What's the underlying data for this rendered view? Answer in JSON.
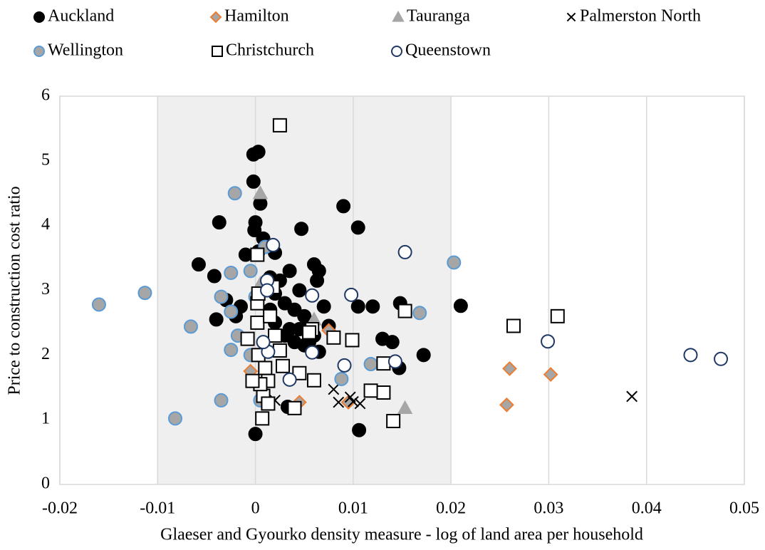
{
  "chart_data": {
    "type": "scatter",
    "x_label": "Glaeser and Gyourko density measure - log of land area per household",
    "y_label": "Price to construction cost ratio",
    "xlim": [
      -0.02,
      0.05
    ],
    "xticks": [
      -0.02,
      -0.01,
      0,
      0.01,
      0.02,
      0.03,
      0.04,
      0.05
    ],
    "ylim": [
      0,
      6
    ],
    "yticks": [
      0,
      1,
      2,
      3,
      4,
      5,
      6
    ],
    "grid": "x",
    "highlight_xrange": [
      -0.01,
      0.02
    ],
    "highlight_color": "#efefef",
    "legend": "top",
    "series": [
      {
        "name": "Auckland",
        "marker": "circle",
        "color": "#000000",
        "edge": "#000000",
        "x": [
          0.021,
          -0.0002,
          0.0003,
          -0.0002,
          0.0005,
          0.009,
          -0.0037,
          0.0105,
          0.0047,
          0,
          -0.0001,
          0.0008,
          0.0003,
          -0.001,
          0.002,
          -0.0058,
          -0.0042,
          0.006,
          0.0065,
          0.0035,
          0.0015,
          0.0025,
          0.0063,
          0.0045,
          0.002,
          -0.004,
          -0.003,
          -0.0015,
          0.003,
          0.004,
          0.005,
          0.0055,
          0.007,
          0.0075,
          0.0105,
          0.012,
          0.0148,
          0.013,
          0.014,
          0.0172,
          0.0147,
          0.0065,
          0.005,
          0.003,
          0.0035,
          0.0045,
          0.004,
          0.0055,
          0.0033,
          0.0106,
          0,
          -0.002,
          0.002,
          0.0015,
          0.006
        ],
        "values": [
          2.76,
          5.1,
          5.14,
          4.68,
          4.34,
          4.3,
          4.05,
          3.97,
          3.95,
          4.05,
          3.93,
          3.8,
          3.6,
          3.55,
          3.58,
          3.4,
          3.22,
          3.4,
          3.3,
          3.3,
          3.2,
          3.15,
          3.15,
          3.0,
          2.95,
          2.55,
          2.85,
          2.75,
          2.8,
          2.7,
          2.6,
          2.5,
          2.75,
          2.45,
          2.75,
          2.75,
          2.8,
          2.25,
          2.2,
          2.0,
          1.8,
          2.05,
          2.15,
          2.3,
          2.4,
          2.4,
          2.2,
          2.2,
          1.2,
          0.84,
          0.78,
          2.6,
          2.5,
          2.7,
          2.3
        ]
      },
      {
        "name": "Hamilton",
        "marker": "diamond",
        "color": "#a6a6a6",
        "edge": "#ed7d31",
        "x": [
          0.026,
          0.0302,
          0.0257,
          0.0045,
          0.0095,
          -0.0005,
          0.0075
        ],
        "values": [
          1.79,
          1.7,
          1.23,
          1.27,
          1.27,
          1.75,
          2.38
        ]
      },
      {
        "name": "Tauranga",
        "marker": "triangle",
        "color": "#a6a6a6",
        "edge": "#a6a6a6",
        "x": [
          0.0005,
          0.0153,
          0.006,
          0.0005
        ],
        "values": [
          4.5,
          1.18,
          2.55,
          3.1
        ]
      },
      {
        "name": "Palmerston North",
        "marker": "x",
        "color": "#000000",
        "edge": "#000000",
        "x": [
          0.0385,
          0.008,
          0.0085,
          0.0097,
          0.01,
          0.0107,
          0.002
        ],
        "values": [
          1.36,
          1.47,
          1.27,
          1.35,
          1.28,
          1.25,
          1.3
        ]
      },
      {
        "name": "Wellington",
        "marker": "circle",
        "color": "#a6a6a6",
        "edge": "#5b9bd5",
        "x": [
          -0.016,
          -0.0113,
          -0.0082,
          -0.0066,
          -0.0035,
          -0.0021,
          -0.0025,
          -0.0035,
          -0.0025,
          -0.0025,
          -0.0018,
          -0.0005,
          0.0203,
          0.0168,
          0.0088,
          0.0118,
          0.001,
          0.0005,
          -0.0005,
          0
        ],
        "values": [
          2.78,
          2.96,
          1.02,
          2.44,
          1.3,
          4.5,
          3.27,
          2.9,
          2.67,
          2.08,
          2.3,
          3.3,
          3.43,
          2.65,
          1.63,
          1.86,
          3.67,
          1.3,
          2.0,
          2.9
        ]
      },
      {
        "name": "Christchurch",
        "marker": "square",
        "color": "#ffffff",
        "edge": "#000000",
        "x": [
          0.0025,
          0.0264,
          0.0309,
          0.0153,
          0.0141,
          0.0131,
          0.0131,
          0.0118,
          0.0099,
          0.008,
          0.006,
          0.004,
          0.0045,
          0.0058,
          0.0007,
          0.0008,
          0.0013,
          0.0013,
          0.0003,
          0.0002,
          0.0002,
          0.0003,
          0.0002,
          0.0015,
          0.002,
          0.0025,
          0.0028,
          0.001,
          0.0005,
          -0.0003,
          0.0018,
          -0.0008,
          0.0055
        ],
        "values": [
          5.55,
          2.45,
          2.6,
          2.68,
          0.98,
          1.87,
          1.42,
          1.45,
          2.23,
          2.27,
          1.61,
          1.18,
          1.72,
          2.4,
          1.02,
          1.37,
          1.25,
          1.6,
          2.0,
          2.5,
          2.8,
          2.95,
          3.55,
          2.6,
          2.3,
          2.07,
          1.83,
          1.8,
          1.55,
          1.6,
          3.05,
          2.25,
          2.35
        ]
      },
      {
        "name": "Queenstown",
        "marker": "circle",
        "color": "#ffffff",
        "edge": "#1f3864",
        "x": [
          0.0476,
          0.0445,
          0.0299,
          0.0153,
          0.0143,
          0.0098,
          0.0091,
          0.0058,
          0.0058,
          0.0035,
          0.0013,
          0.0018,
          0.0012,
          0.0012,
          0.0008
        ],
        "values": [
          1.94,
          2.0,
          2.21,
          3.59,
          1.9,
          2.93,
          1.84,
          2.92,
          2.04,
          1.62,
          2.05,
          3.7,
          3.15,
          3.0,
          2.2
        ]
      }
    ]
  }
}
